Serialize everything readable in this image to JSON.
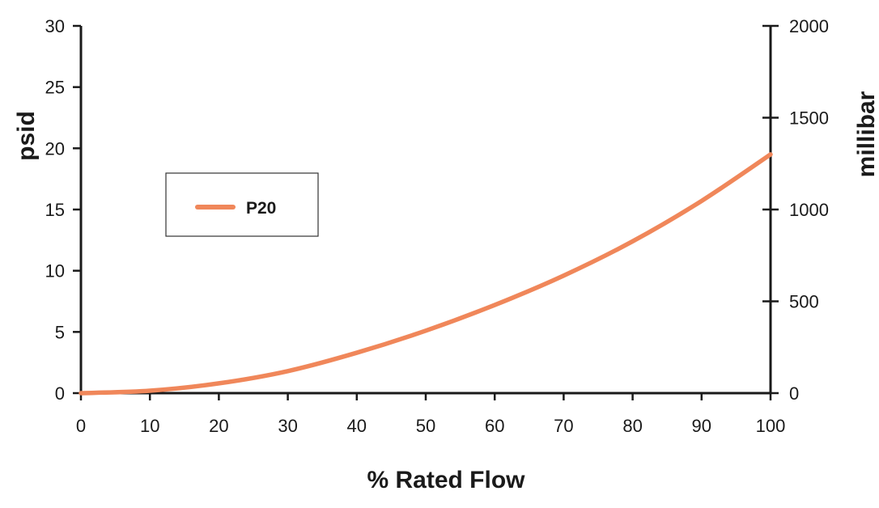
{
  "chart_data": {
    "type": "line",
    "xlabel": "% Rated Flow",
    "ylabel_left": "psid",
    "ylabel_right": "millibar",
    "xlim": [
      0,
      100
    ],
    "ylim_left": [
      0,
      30
    ],
    "ylim_right": [
      0,
      2000
    ],
    "x_ticks": [
      "0",
      "10",
      "20",
      "30",
      "40",
      "50",
      "60",
      "70",
      "80",
      "90",
      "100"
    ],
    "y_ticks_left": [
      "0",
      "5",
      "10",
      "15",
      "20",
      "25",
      "30"
    ],
    "y_ticks_right": [
      "0",
      "500",
      "1000",
      "1500",
      "2000"
    ],
    "grid": false,
    "legend_position": "upper-left",
    "series": [
      {
        "name": "P20",
        "color": "#f0875a",
        "x": [
          0,
          10,
          20,
          30,
          40,
          50,
          60,
          70,
          80,
          90,
          100
        ],
        "y": [
          0,
          0.2,
          0.8,
          1.8,
          3.3,
          5.1,
          7.2,
          9.6,
          12.4,
          15.7,
          19.5
        ]
      }
    ]
  }
}
